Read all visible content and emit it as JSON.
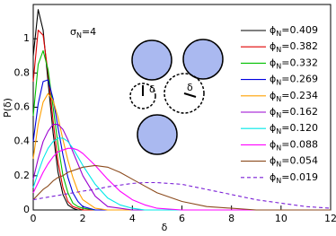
{
  "chart_data": {
    "type": "line",
    "xlabel": "δ",
    "ylabel": "P(δ)",
    "annotation": "σN=4",
    "inset_labels": [
      "δ",
      "δ"
    ],
    "x": [
      0,
      0.2,
      0.4,
      0.6,
      0.8,
      1,
      1.2,
      1.4,
      1.6,
      1.8,
      2,
      2.5,
      3,
      3.5,
      4,
      4.5,
      5,
      6,
      7,
      8,
      9,
      10,
      11,
      12
    ],
    "xlim": [
      0,
      12
    ],
    "xticks": [
      0,
      2,
      4,
      6,
      8,
      10,
      12
    ],
    "ylim": [
      0,
      1.2
    ],
    "yticks": [
      0,
      0.2,
      0.4,
      0.6,
      0.8,
      1
    ],
    "series": [
      {
        "name": "ϕN=0.409",
        "color": "#000000",
        "dashed": false,
        "values": [
          0.9,
          1.17,
          1.05,
          0.75,
          0.45,
          0.22,
          0.09,
          0.03,
          0.01,
          0,
          0,
          0,
          0,
          0,
          0,
          0,
          0,
          0,
          0,
          0,
          0,
          0,
          0,
          0
        ]
      },
      {
        "name": "ϕN=0.382",
        "color": "#e00000",
        "dashed": false,
        "values": [
          0.75,
          1.05,
          1.02,
          0.8,
          0.52,
          0.28,
          0.13,
          0.05,
          0.02,
          0.01,
          0,
          0,
          0,
          0,
          0,
          0,
          0,
          0,
          0,
          0,
          0,
          0,
          0,
          0
        ]
      },
      {
        "name": "ϕN=0.332",
        "color": "#00c000",
        "dashed": false,
        "values": [
          0.55,
          0.85,
          0.93,
          0.82,
          0.6,
          0.38,
          0.2,
          0.1,
          0.04,
          0.02,
          0.01,
          0,
          0,
          0,
          0,
          0,
          0,
          0,
          0,
          0,
          0,
          0,
          0,
          0
        ]
      },
      {
        "name": "ϕN=0.269",
        "color": "#0000e0",
        "dashed": false,
        "values": [
          0.4,
          0.62,
          0.75,
          0.76,
          0.65,
          0.48,
          0.32,
          0.19,
          0.1,
          0.05,
          0.02,
          0,
          0,
          0,
          0,
          0,
          0,
          0,
          0,
          0,
          0,
          0,
          0,
          0
        ]
      },
      {
        "name": "ϕN=0.234",
        "color": "#ffa000",
        "dashed": false,
        "values": [
          0.3,
          0.5,
          0.63,
          0.68,
          0.64,
          0.54,
          0.41,
          0.29,
          0.19,
          0.11,
          0.06,
          0.01,
          0,
          0,
          0,
          0,
          0,
          0,
          0,
          0,
          0,
          0,
          0,
          0
        ]
      },
      {
        "name": "ϕN=0.162",
        "color": "#9a00d0",
        "dashed": false,
        "values": [
          0.18,
          0.3,
          0.4,
          0.46,
          0.5,
          0.5,
          0.47,
          0.41,
          0.34,
          0.27,
          0.2,
          0.08,
          0.02,
          0.01,
          0,
          0,
          0,
          0,
          0,
          0,
          0,
          0,
          0,
          0
        ]
      },
      {
        "name": "ϕN=0.120",
        "color": "#00e8e8",
        "dashed": false,
        "values": [
          0.13,
          0.22,
          0.3,
          0.36,
          0.4,
          0.42,
          0.42,
          0.4,
          0.36,
          0.31,
          0.26,
          0.15,
          0.07,
          0.03,
          0.01,
          0,
          0,
          0,
          0,
          0,
          0,
          0,
          0,
          0
        ]
      },
      {
        "name": "ϕN=0.088",
        "color": "#ff00ff",
        "dashed": false,
        "values": [
          0.1,
          0.16,
          0.22,
          0.27,
          0.31,
          0.34,
          0.35,
          0.36,
          0.36,
          0.35,
          0.33,
          0.26,
          0.18,
          0.11,
          0.06,
          0.03,
          0.01,
          0,
          0,
          0,
          0,
          0,
          0,
          0
        ]
      },
      {
        "name": "ϕN=0.054",
        "color": "#8b4a1c",
        "dashed": false,
        "values": [
          0.06,
          0.09,
          0.12,
          0.14,
          0.17,
          0.19,
          0.2,
          0.22,
          0.23,
          0.24,
          0.25,
          0.26,
          0.25,
          0.22,
          0.18,
          0.14,
          0.1,
          0.05,
          0.02,
          0.01,
          0,
          0,
          0,
          0
        ]
      },
      {
        "name": "ϕN=0.019",
        "color": "#7a1fd6",
        "dashed": true,
        "values": [
          0.06,
          0.065,
          0.07,
          0.075,
          0.08,
          0.085,
          0.09,
          0.095,
          0.1,
          0.105,
          0.11,
          0.12,
          0.135,
          0.145,
          0.155,
          0.16,
          0.16,
          0.15,
          0.12,
          0.09,
          0.06,
          0.04,
          0.02,
          0.01
        ]
      }
    ]
  }
}
